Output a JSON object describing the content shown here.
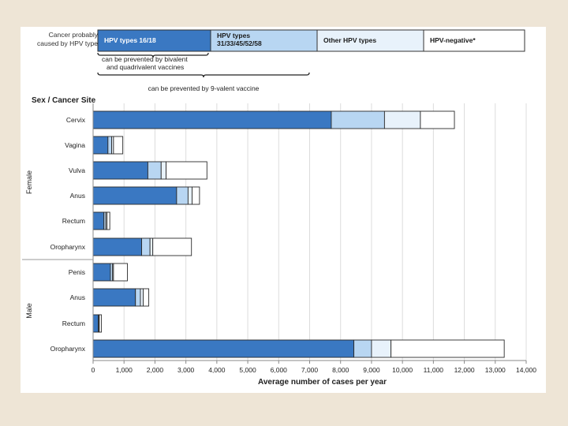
{
  "legend": {
    "intro": [
      "Cancer probably",
      "caused by HPV type"
    ],
    "items": [
      {
        "label": [
          "HPV types 16/18"
        ],
        "color": "#3a78c2",
        "text_color": "#ffffff"
      },
      {
        "label": [
          "HPV types",
          "31/33/45/52/58"
        ],
        "color": "#b8d6f2",
        "text_color": "#1a1a1a"
      },
      {
        "label": [
          "Other HPV types"
        ],
        "color": "#e8f2fb",
        "text_color": "#1a1a1a"
      },
      {
        "label": [
          "HPV-negative*"
        ],
        "color": "#ffffff",
        "text_color": "#1a1a1a"
      }
    ],
    "brace1_label": [
      "can be prevented by bivalent",
      "and quadrivalent vaccines"
    ],
    "brace2_label": "can be prevented by 9-valent vaccine"
  },
  "chart_data": {
    "type": "bar",
    "orientation": "horizontal",
    "stacked": true,
    "title": "Sex / Cancer Site",
    "xlabel": "Average number of cases per year",
    "ylabel": "",
    "xlim": [
      0,
      14000
    ],
    "xticks": [
      0,
      1000,
      2000,
      3000,
      4000,
      5000,
      6000,
      7000,
      8000,
      9000,
      10000,
      11000,
      12000,
      13000,
      14000
    ],
    "xtick_labels": [
      "0",
      "1,000",
      "2,000",
      "3,000",
      "4,000",
      "5,000",
      "6,000",
      "7,000",
      "8,000",
      "9,000",
      "10,000",
      "11,000",
      "12,000",
      "13,000",
      "14,000"
    ],
    "groups": [
      {
        "name": "Female",
        "categories": [
          "Cervix",
          "Vagina",
          "Vulva",
          "Anus",
          "Rectum",
          "Oropharynx"
        ]
      },
      {
        "name": "Male",
        "categories": [
          "Penis",
          "Anus",
          "Rectum",
          "Oropharynx"
        ]
      }
    ],
    "categories": [
      "Cervix",
      "Vagina",
      "Vulva",
      "Anus",
      "Rectum",
      "Oropharynx",
      "Penis",
      "Anus",
      "Rectum",
      "Oropharynx"
    ],
    "series": [
      {
        "name": "HPV types 16/18",
        "color": "#3a78c2",
        "values": [
          7700,
          480,
          1770,
          2700,
          350,
          1570,
          560,
          1370,
          170,
          8430
        ]
      },
      {
        "name": "HPV types 31/33/45/52/58",
        "color": "#b8d6f2",
        "values": [
          1720,
          120,
          430,
          370,
          60,
          270,
          70,
          160,
          20,
          570
        ]
      },
      {
        "name": "Other HPV types",
        "color": "#e8f2fb",
        "values": [
          1160,
          60,
          160,
          130,
          40,
          90,
          30,
          90,
          10,
          630
        ]
      },
      {
        "name": "HPV-negative*",
        "color": "#ffffff",
        "values": [
          1100,
          300,
          1320,
          240,
          90,
          1250,
          450,
          180,
          70,
          3660
        ]
      }
    ]
  }
}
